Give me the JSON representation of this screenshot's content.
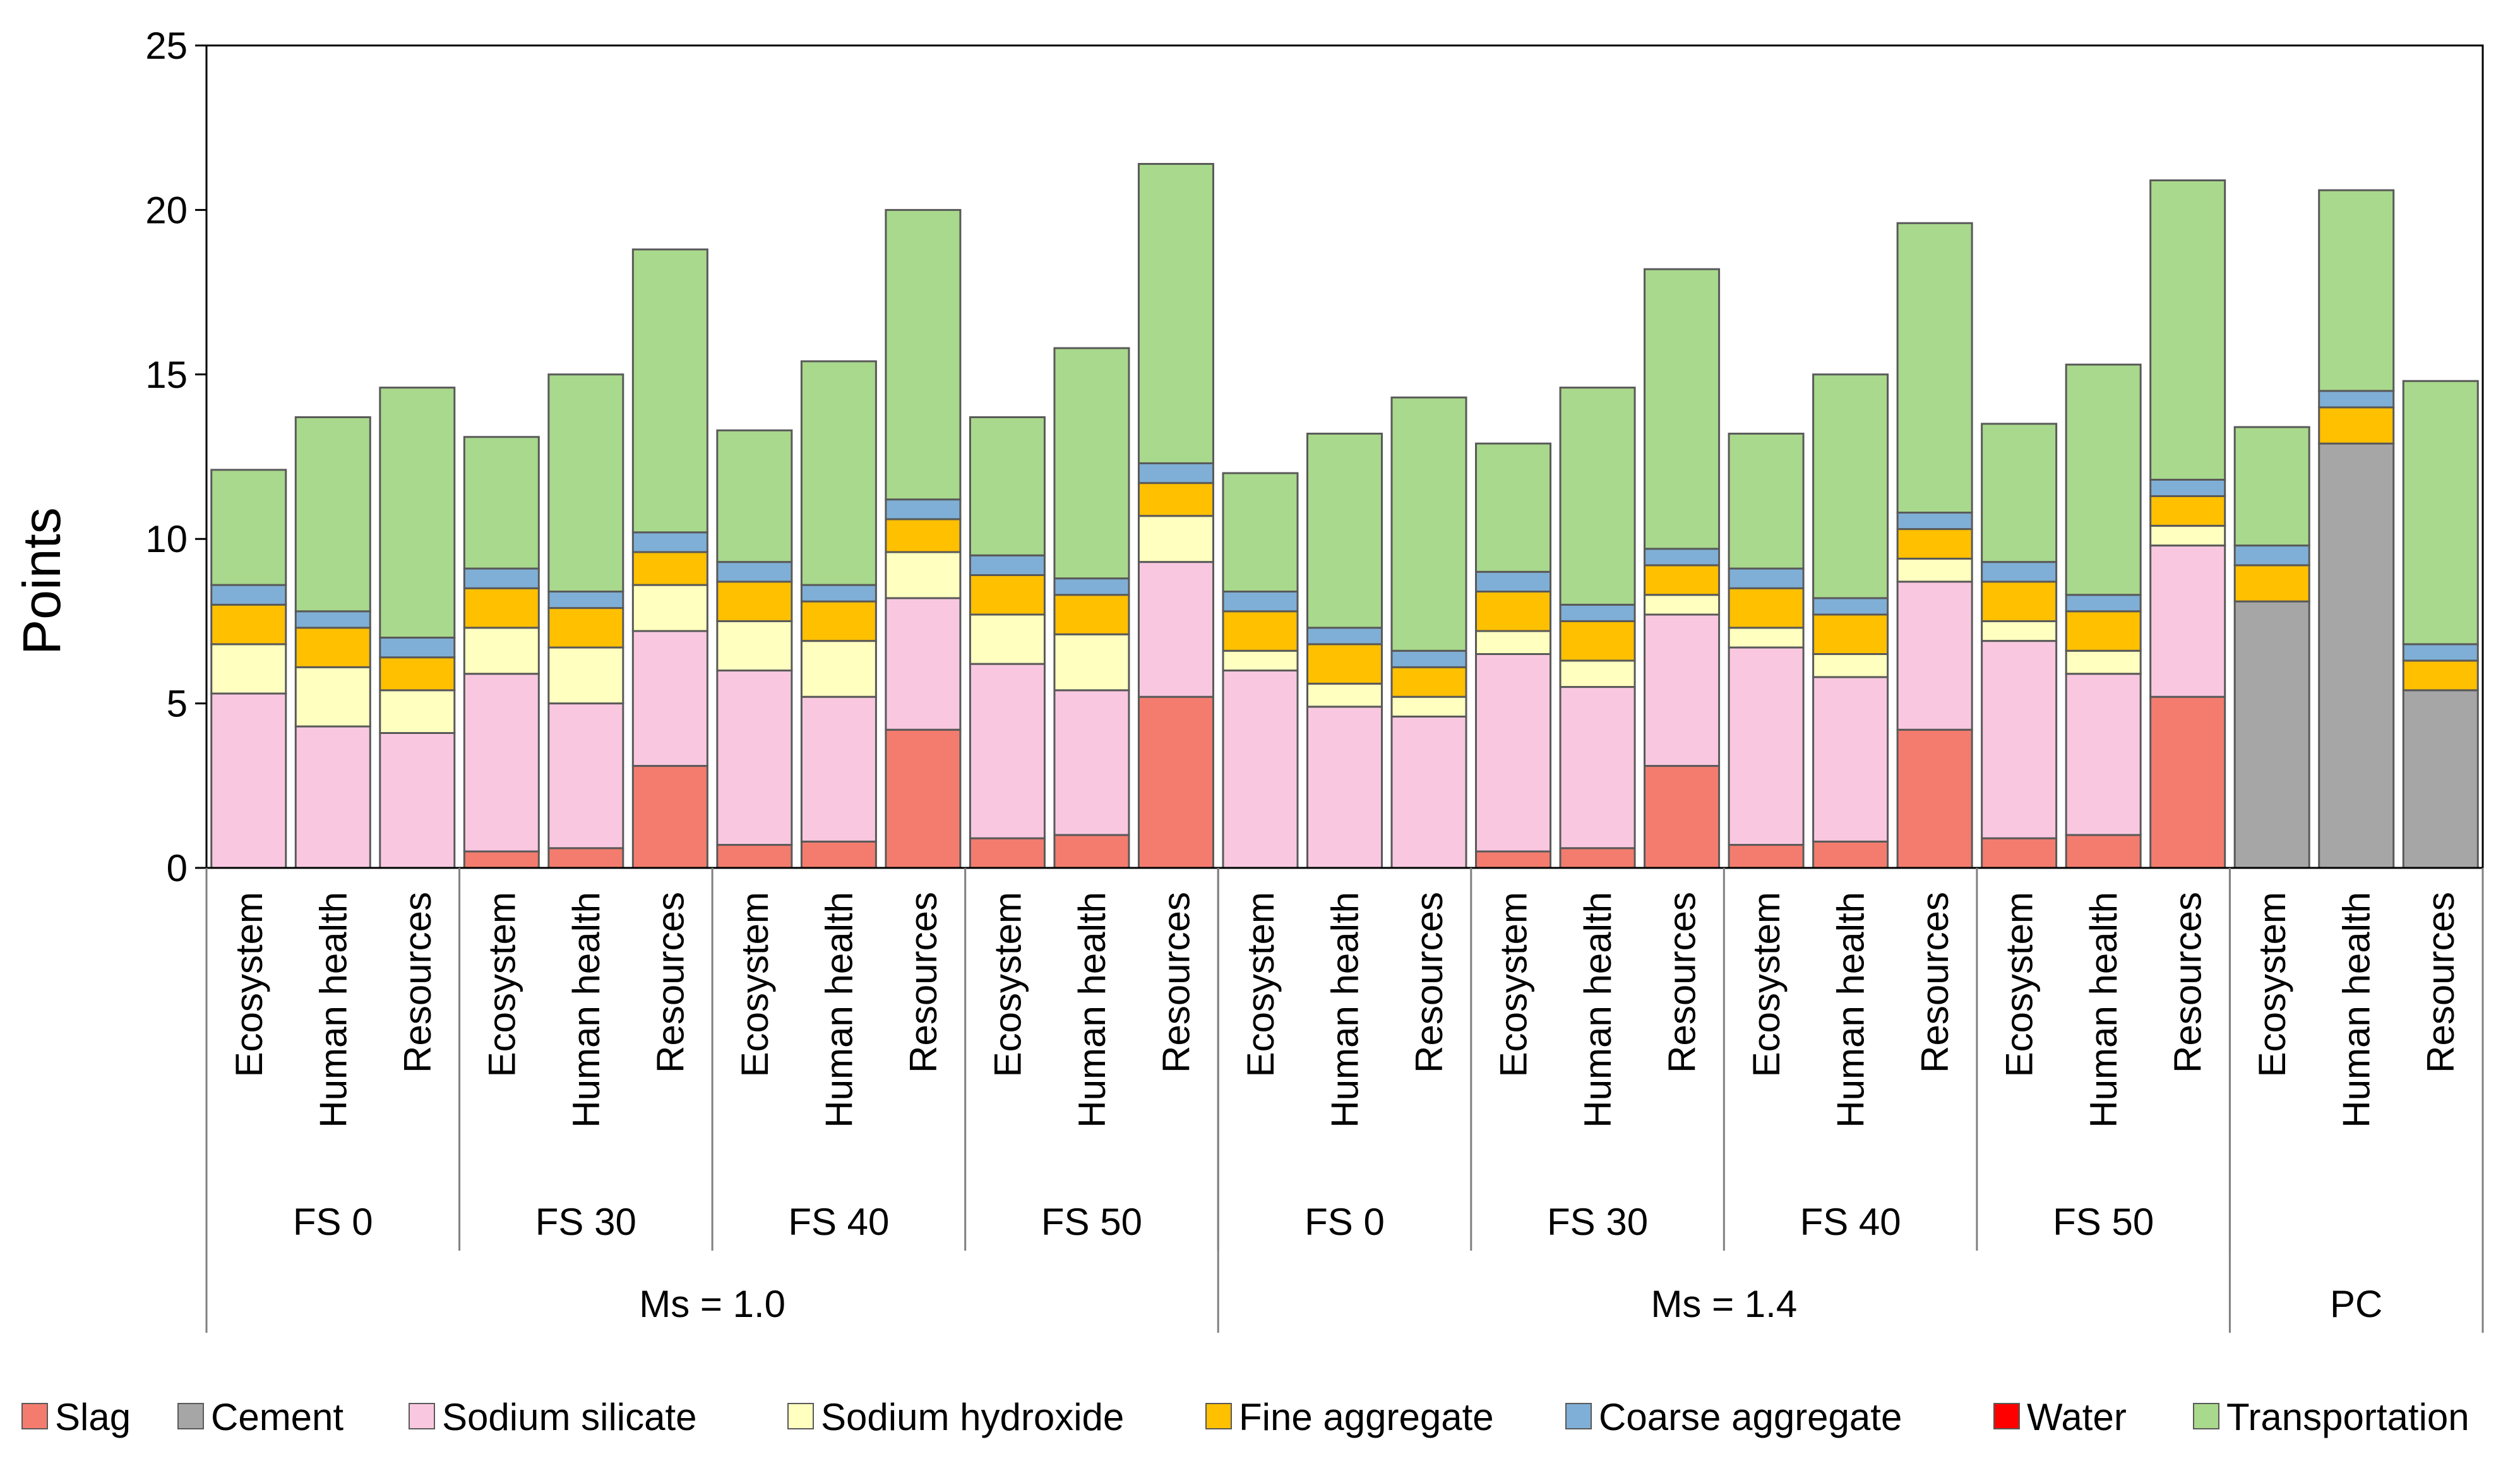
{
  "chart_data": {
    "type": "bar",
    "stacked": true,
    "ylabel": "Points",
    "ylim": [
      0,
      25
    ],
    "yticks": [
      0,
      5,
      10,
      15,
      20,
      25
    ],
    "grid": false,
    "legend_position": "bottom",
    "categories": [
      "Ecosystem",
      "Human health",
      "Resources",
      "Ecosystem",
      "Human health",
      "Resources",
      "Ecosystem",
      "Human health",
      "Resources",
      "Ecosystem",
      "Human health",
      "Resources",
      "Ecosystem",
      "Human health",
      "Resources",
      "Ecosystem",
      "Human health",
      "Resources",
      "Ecosystem",
      "Human health",
      "Resources",
      "Ecosystem",
      "Human health",
      "Resources",
      "Ecosystem",
      "Human health",
      "Resources"
    ],
    "groups_level1": [
      {
        "label": "FS 0",
        "start": 0,
        "count": 3
      },
      {
        "label": "FS 30",
        "start": 3,
        "count": 3
      },
      {
        "label": "FS 40",
        "start": 6,
        "count": 3
      },
      {
        "label": "FS 50",
        "start": 9,
        "count": 3
      },
      {
        "label": "FS 0",
        "start": 12,
        "count": 3
      },
      {
        "label": "FS 30",
        "start": 15,
        "count": 3
      },
      {
        "label": "FS 40",
        "start": 18,
        "count": 3
      },
      {
        "label": "FS 50",
        "start": 21,
        "count": 3
      },
      {
        "label": "",
        "start": 24,
        "count": 3
      }
    ],
    "groups_level2": [
      {
        "label": "Ms = 1.0",
        "start": 0,
        "count": 12
      },
      {
        "label": "Ms = 1.4",
        "start": 12,
        "count": 12
      },
      {
        "label": "PC",
        "start": 24,
        "count": 3
      }
    ],
    "series": [
      {
        "name": "Slag",
        "color": "#f47c6e",
        "values": [
          0,
          0,
          0,
          0.5,
          0.6,
          3.1,
          0.7,
          0.8,
          4.2,
          0.9,
          1.0,
          5.2,
          0,
          0,
          0,
          0.5,
          0.6,
          3.1,
          0.7,
          0.8,
          4.2,
          0.9,
          1.0,
          5.2,
          0,
          0,
          0
        ]
      },
      {
        "name": "Cement",
        "color": "#a6a6a6",
        "values": [
          0,
          0,
          0,
          0,
          0,
          0,
          0,
          0,
          0,
          0,
          0,
          0,
          0,
          0,
          0,
          0,
          0,
          0,
          0,
          0,
          0,
          0,
          0,
          0,
          8.1,
          12.9,
          5.4
        ]
      },
      {
        "name": "Sodium silicate",
        "color": "#f9c8e0",
        "values": [
          5.3,
          4.3,
          4.1,
          5.4,
          4.4,
          4.1,
          5.3,
          4.4,
          4.0,
          5.3,
          4.4,
          4.1,
          6.0,
          4.9,
          4.6,
          6.0,
          4.9,
          4.6,
          6.0,
          5.0,
          4.5,
          6.0,
          4.9,
          4.6,
          0,
          0,
          0
        ]
      },
      {
        "name": "Sodium hydroxide",
        "color": "#ffffc0",
        "values": [
          1.5,
          1.8,
          1.3,
          1.4,
          1.7,
          1.4,
          1.5,
          1.7,
          1.4,
          1.5,
          1.7,
          1.4,
          0.6,
          0.7,
          0.6,
          0.7,
          0.8,
          0.6,
          0.6,
          0.7,
          0.7,
          0.6,
          0.7,
          0.6,
          0,
          0,
          0
        ]
      },
      {
        "name": "Fine aggregate",
        "color": "#ffc000",
        "values": [
          1.2,
          1.2,
          1.0,
          1.2,
          1.2,
          1.0,
          1.2,
          1.2,
          1.0,
          1.2,
          1.2,
          1.0,
          1.2,
          1.2,
          0.9,
          1.2,
          1.2,
          0.9,
          1.2,
          1.2,
          0.9,
          1.2,
          1.2,
          0.9,
          1.1,
          1.1,
          0.9
        ]
      },
      {
        "name": "Coarse aggregate",
        "color": "#7fafd6",
        "values": [
          0.6,
          0.5,
          0.6,
          0.6,
          0.5,
          0.6,
          0.6,
          0.5,
          0.6,
          0.6,
          0.5,
          0.6,
          0.6,
          0.5,
          0.5,
          0.6,
          0.5,
          0.5,
          0.6,
          0.5,
          0.5,
          0.6,
          0.5,
          0.5,
          0.6,
          0.5,
          0.5
        ]
      },
      {
        "name": "Water",
        "color": "#ff0000",
        "values": [
          0,
          0,
          0,
          0,
          0,
          0,
          0,
          0,
          0,
          0,
          0,
          0,
          0,
          0,
          0,
          0,
          0,
          0,
          0,
          0,
          0,
          0,
          0,
          0,
          0,
          0,
          0
        ]
      },
      {
        "name": "Transportation",
        "color": "#a9d98c",
        "values": [
          3.5,
          5.9,
          7.6,
          4.0,
          6.6,
          8.6,
          4.0,
          6.8,
          8.8,
          4.2,
          7.0,
          9.1,
          3.6,
          5.9,
          7.7,
          3.9,
          6.6,
          8.5,
          4.1,
          6.8,
          8.8,
          4.2,
          7.0,
          9.1,
          3.6,
          6.1,
          8.0
        ]
      }
    ]
  }
}
